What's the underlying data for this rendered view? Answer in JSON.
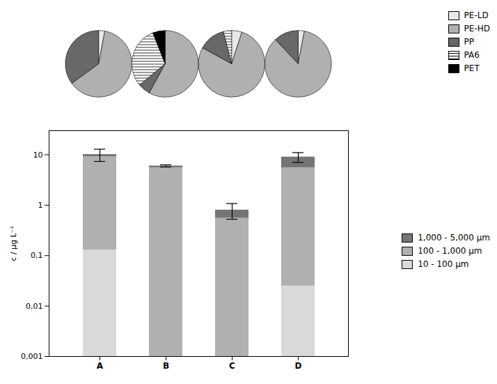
{
  "chart_data": [
    {
      "type": "bar",
      "stacked": true,
      "log": "y",
      "categories": [
        "A",
        "B",
        "C",
        "D"
      ],
      "series": [
        {
          "name": "10 - 100 µm",
          "color": "#d9d9d9",
          "values": [
            0.13,
            0.001,
            0.001,
            0.025
          ]
        },
        {
          "name": "100 - 1,000 µm",
          "color": "#b0b0b0",
          "values": [
            9.0,
            5.5,
            0.55,
            5.5
          ]
        },
        {
          "name": "1,000 - 5,000 µm",
          "color": "#757575",
          "values": [
            1.0,
            0.5,
            0.25,
            3.5
          ]
        }
      ],
      "errors": [
        2.75,
        0.3,
        0.275,
        2.0
      ],
      "ylabel": "c / µg L⁻¹",
      "ylim": [
        0.001,
        30
      ],
      "yticks": [
        {
          "value": 0.001,
          "label": "0,001"
        },
        {
          "value": 0.01,
          "label": "0,01"
        },
        {
          "value": 0.1,
          "label": "0,1"
        },
        1,
        10
      ],
      "legend": "right"
    },
    {
      "type": "pie",
      "categories": [
        "PE-LD",
        "PE-HD",
        "PP",
        "PA6",
        "PET"
      ],
      "values": [
        0.03,
        0.62,
        0.35,
        0.0,
        0.0
      ],
      "colors": [
        "#e8e8e8",
        "#b0b0b0",
        "#686868",
        "#ffffff",
        "#000000"
      ],
      "legend": "upper right"
    },
    {
      "type": "pie",
      "categories": [
        "PE-LD",
        "PE-HD",
        "PP",
        "PA6",
        "PET"
      ],
      "values": [
        0.0,
        0.58,
        0.06,
        0.3,
        0.06
      ],
      "colors": [
        "#e8e8e8",
        "#b0b0b0",
        "#686868",
        "#ffffff",
        "#000000"
      ]
    },
    {
      "type": "pie",
      "categories": [
        "PE-LD",
        "PE-HD",
        "PP",
        "PA6",
        "PET"
      ],
      "values": [
        0.05,
        0.78,
        0.13,
        0.04,
        0.0
      ],
      "colors": [
        "#e8e8e8",
        "#b0b0b0",
        "#686868",
        "#ffffff",
        "#000000"
      ]
    },
    {
      "type": "pie",
      "categories": [
        "PE-LD",
        "PE-HD",
        "PP",
        "PA6",
        "PET"
      ],
      "values": [
        0.03,
        0.85,
        0.12,
        0.0,
        0.0
      ],
      "colors": [
        "#e8e8e8",
        "#b0b0b0",
        "#686868",
        "#ffffff",
        "#000000"
      ]
    }
  ]
}
